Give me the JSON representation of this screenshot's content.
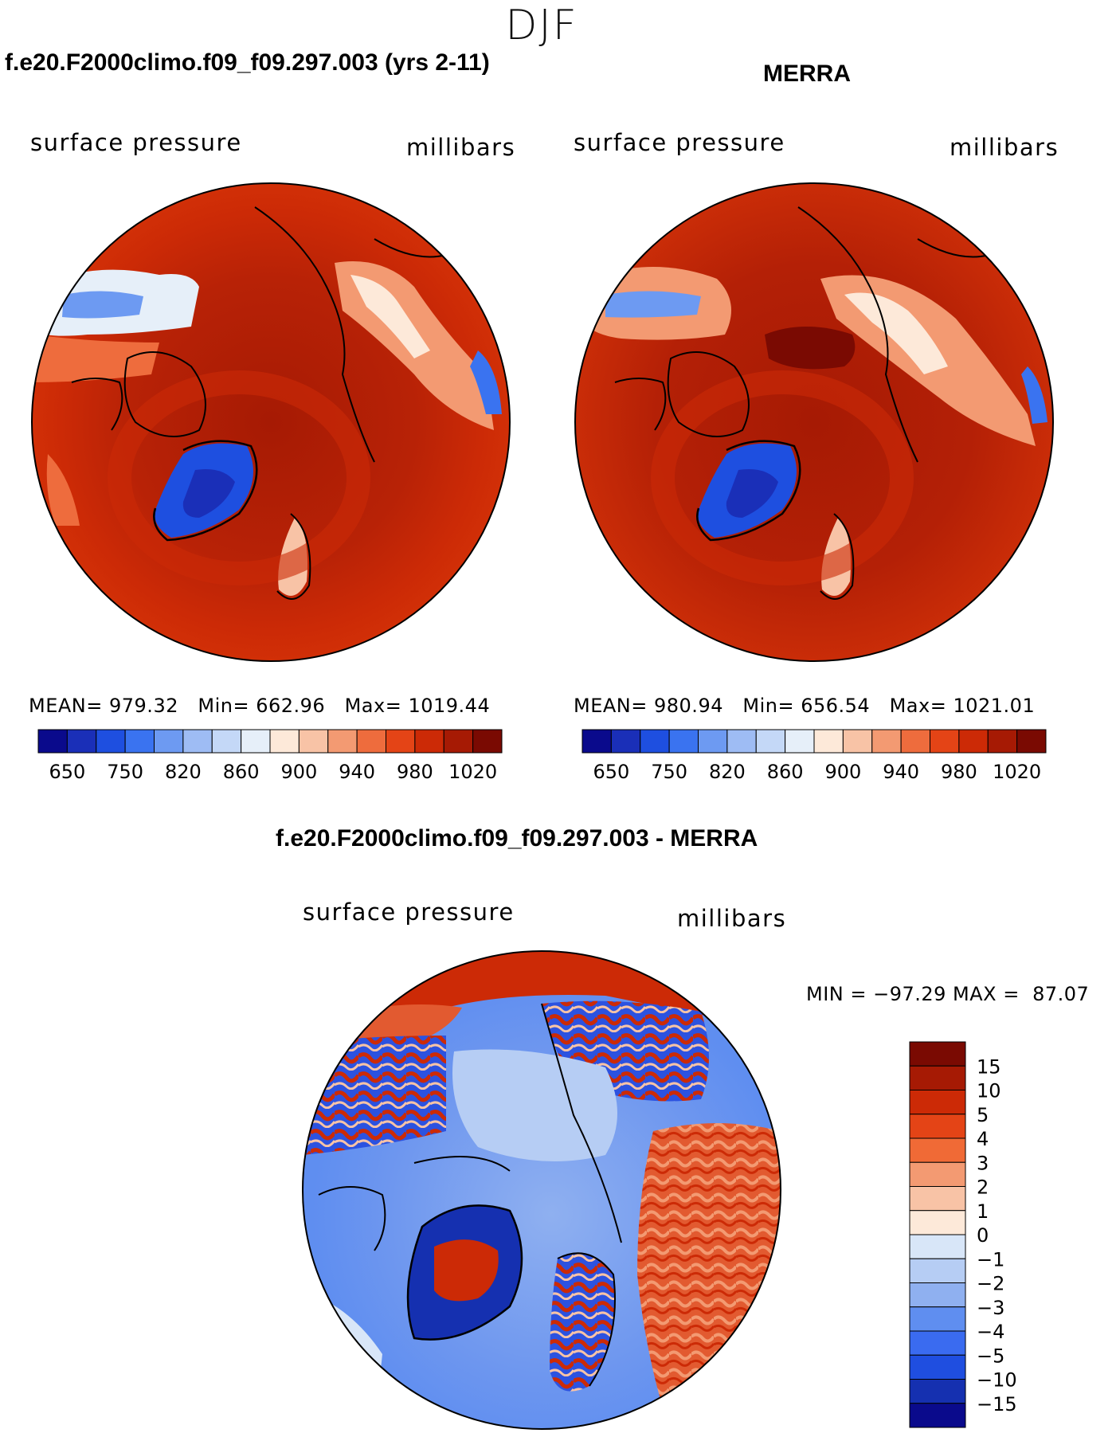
{
  "season": "DJF",
  "panels": {
    "model": {
      "title": "f.e20.F2000climo.f09_f09.297.003 (yrs 2-11)",
      "variable": "surface pressure",
      "units": "millibars",
      "mean_label": "MEAN=",
      "mean": "979.32",
      "min_label": "Min=",
      "min": "662.96",
      "max_label": "Max=",
      "max": "1019.44"
    },
    "obs": {
      "title": "MERRA",
      "variable": "surface pressure",
      "units": "millibars",
      "mean_label": "MEAN=",
      "mean": "980.94",
      "min_label": "Min=",
      "min": "656.54",
      "max_label": "Max=",
      "max": "1021.01"
    },
    "diff": {
      "title": "f.e20.F2000climo.f09_f09.297.003 - MERRA",
      "variable": "surface pressure",
      "units": "millibars",
      "minmax": "MIN = −97.29 MAX =  87.07"
    }
  },
  "colorbars": {
    "abs": {
      "colors": [
        "#0a0a8c",
        "#1a2fb8",
        "#1e4fe0",
        "#3a73f0",
        "#6d9af2",
        "#9ebcf4",
        "#c4d8f7",
        "#e6eff9",
        "#fde9d9",
        "#f8c3a6",
        "#f39a72",
        "#ee6c3d",
        "#e44416",
        "#cc2a06",
        "#a61a04",
        "#7a0a02"
      ],
      "labels": [
        "650",
        "750",
        "820",
        "860",
        "900",
        "940",
        "980",
        "1020"
      ]
    },
    "diff": {
      "colors": [
        "#7a0a02",
        "#a61a04",
        "#cc2a06",
        "#e44416",
        "#f06a36",
        "#f39a72",
        "#f8c3a6",
        "#fde9d9",
        "#d8e6f8",
        "#b6cdf4",
        "#8fb0f0",
        "#5f8ef0",
        "#3a6bf0",
        "#1f4ee0",
        "#1530b0",
        "#0a0a8c"
      ],
      "labels": [
        "15",
        "10",
        "5",
        "4",
        "3",
        "2",
        "1",
        "0",
        "−1",
        "−2",
        "−3",
        "−4",
        "−5",
        "−10",
        "−15"
      ]
    }
  }
}
